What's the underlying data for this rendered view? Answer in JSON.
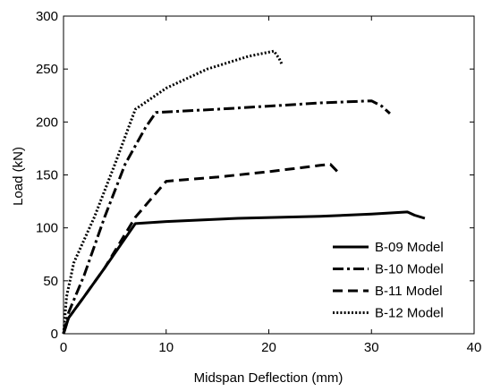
{
  "chart_data": {
    "type": "line",
    "xlabel": "Midspan Deflection (mm)",
    "ylabel": "Load (kN)",
    "xlim": [
      0,
      40
    ],
    "ylim": [
      0,
      300
    ],
    "xticks": [
      0,
      10,
      20,
      30,
      40
    ],
    "yticks": [
      0,
      50,
      100,
      150,
      200,
      250,
      300
    ],
    "grid": false,
    "legend_position": "bottom-right",
    "series": [
      {
        "name": "B-09 Model",
        "dash": "solid",
        "points": [
          [
            0,
            0
          ],
          [
            0.5,
            15
          ],
          [
            2,
            35
          ],
          [
            4,
            62
          ],
          [
            7,
            104
          ],
          [
            10,
            106
          ],
          [
            17,
            109
          ],
          [
            25,
            111
          ],
          [
            30,
            113
          ],
          [
            33.5,
            115
          ],
          [
            34.2,
            112
          ],
          [
            35.2,
            109
          ]
        ]
      },
      {
        "name": "B-10 Model",
        "dash": "dashdot",
        "points": [
          [
            0,
            0
          ],
          [
            0.5,
            20
          ],
          [
            2,
            55
          ],
          [
            4,
            110
          ],
          [
            6,
            160
          ],
          [
            8,
            195
          ],
          [
            9,
            209
          ],
          [
            15,
            212
          ],
          [
            20,
            215
          ],
          [
            25,
            218
          ],
          [
            30,
            220
          ],
          [
            31,
            215
          ],
          [
            31.8,
            208
          ]
        ]
      },
      {
        "name": "B-11 Model",
        "dash": "dashed",
        "points": [
          [
            0,
            0
          ],
          [
            0.5,
            15
          ],
          [
            2,
            35
          ],
          [
            4,
            62
          ],
          [
            7,
            110
          ],
          [
            10,
            144
          ],
          [
            15,
            148
          ],
          [
            20,
            153
          ],
          [
            25,
            159
          ],
          [
            26,
            160
          ],
          [
            26.8,
            152
          ]
        ]
      },
      {
        "name": "B-12 Model",
        "dash": "dotted",
        "points": [
          [
            0,
            0
          ],
          [
            0.3,
            35
          ],
          [
            1,
            67
          ],
          [
            3,
            110
          ],
          [
            5,
            160
          ],
          [
            7,
            212
          ],
          [
            10,
            232
          ],
          [
            14,
            250
          ],
          [
            18,
            262
          ],
          [
            20.5,
            267
          ],
          [
            21,
            260
          ],
          [
            21.3,
            254
          ]
        ]
      }
    ]
  }
}
